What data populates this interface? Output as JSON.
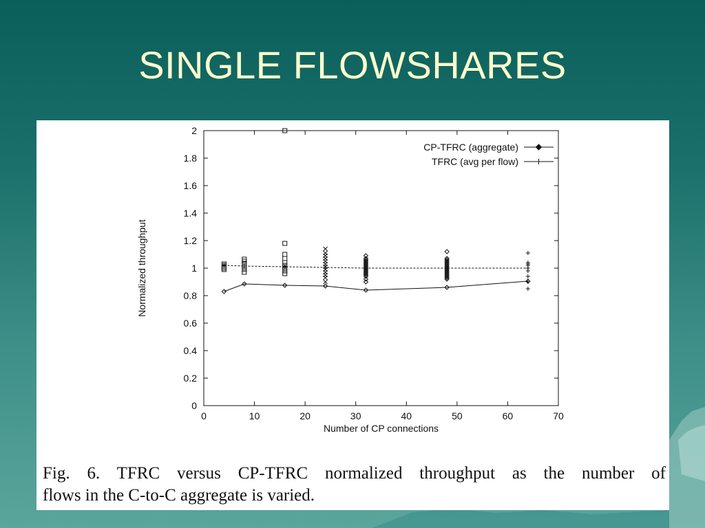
{
  "slide": {
    "title": "SINGLE FLOWSHARES"
  },
  "caption": {
    "line1": "Fig. 6.    TFRC versus CP-TFRC normalized throughput as the number of",
    "line2": "flows in the C-to-C aggregate is varied."
  },
  "colors": {
    "background": "#1a6f6a",
    "title": "#ffffcc",
    "panel": "#ffffff",
    "ink": "#111111"
  },
  "chart_data": {
    "type": "line",
    "title": "",
    "xlabel": "Number of CP connections",
    "ylabel": "Normalized throughput",
    "xlim": [
      0,
      70
    ],
    "ylim": [
      0,
      2
    ],
    "x_ticks": [
      0,
      10,
      20,
      30,
      40,
      50,
      60,
      70
    ],
    "y_ticks": [
      0,
      0.2,
      0.4,
      0.6,
      0.8,
      1,
      1.2,
      1.4,
      1.6,
      1.8,
      2
    ],
    "x_tick_labels": [
      "0",
      "10",
      "20",
      "30",
      "40",
      "50",
      "60",
      "70"
    ],
    "y_tick_labels": [
      "0",
      "0.2",
      "0.4",
      "0.6",
      "0.8",
      "1",
      "1.2",
      "1.4",
      "1.6",
      "1.8",
      "2"
    ],
    "grid": false,
    "legend_position": "top-right",
    "series": [
      {
        "name": "CP-TFRC (aggregate)",
        "marker": "diamond",
        "dash": "solid",
        "x": [
          4,
          8,
          16,
          24,
          32,
          48,
          64
        ],
        "y": [
          0.83,
          0.885,
          0.875,
          0.87,
          0.84,
          0.86,
          0.905
        ]
      },
      {
        "name": "TFRC (avg per flow)",
        "marker": "plus",
        "dash": "dashed",
        "x": [
          4,
          8,
          16,
          24,
          32,
          48,
          64
        ],
        "y": [
          1.02,
          1.015,
          1.01,
          1.005,
          1.0,
          1.0,
          1.0
        ]
      }
    ],
    "per_flow_scatter": [
      {
        "x": 4,
        "marker": "square",
        "y": [
          1.0,
          1.01,
          1.02,
          1.03,
          0.99
        ]
      },
      {
        "x": 8,
        "marker": "square",
        "y": [
          0.97,
          0.99,
          1.01,
          1.03,
          1.05,
          1.065
        ]
      },
      {
        "x": 16,
        "marker": "square",
        "y": [
          2.0,
          1.18,
          1.1,
          1.07,
          1.04,
          1.02,
          1.0,
          0.98,
          0.96
        ]
      },
      {
        "x": 24,
        "marker": "cross",
        "y": [
          1.14,
          1.11,
          1.09,
          1.07,
          1.05,
          1.03,
          1.01,
          0.99,
          0.97,
          0.95,
          0.93,
          0.9
        ]
      },
      {
        "x": 32,
        "marker": "diamond",
        "y": [
          1.09,
          1.07,
          1.06,
          1.05,
          1.04,
          1.03,
          1.02,
          1.01,
          1.0,
          0.99,
          0.98,
          0.97,
          0.96,
          0.95,
          0.94,
          0.92,
          0.9
        ]
      },
      {
        "x": 48,
        "marker": "diamond",
        "y": [
          1.12,
          1.07,
          1.06,
          1.05,
          1.04,
          1.03,
          1.02,
          1.01,
          1.0,
          0.99,
          0.98,
          0.97,
          0.96,
          0.95,
          0.94,
          0.93,
          0.92
        ]
      },
      {
        "x": 64,
        "marker": "plus",
        "y": [
          1.11,
          1.04,
          1.03,
          1.02,
          1.0,
          0.98,
          0.94,
          0.9,
          0.85
        ]
      }
    ]
  }
}
